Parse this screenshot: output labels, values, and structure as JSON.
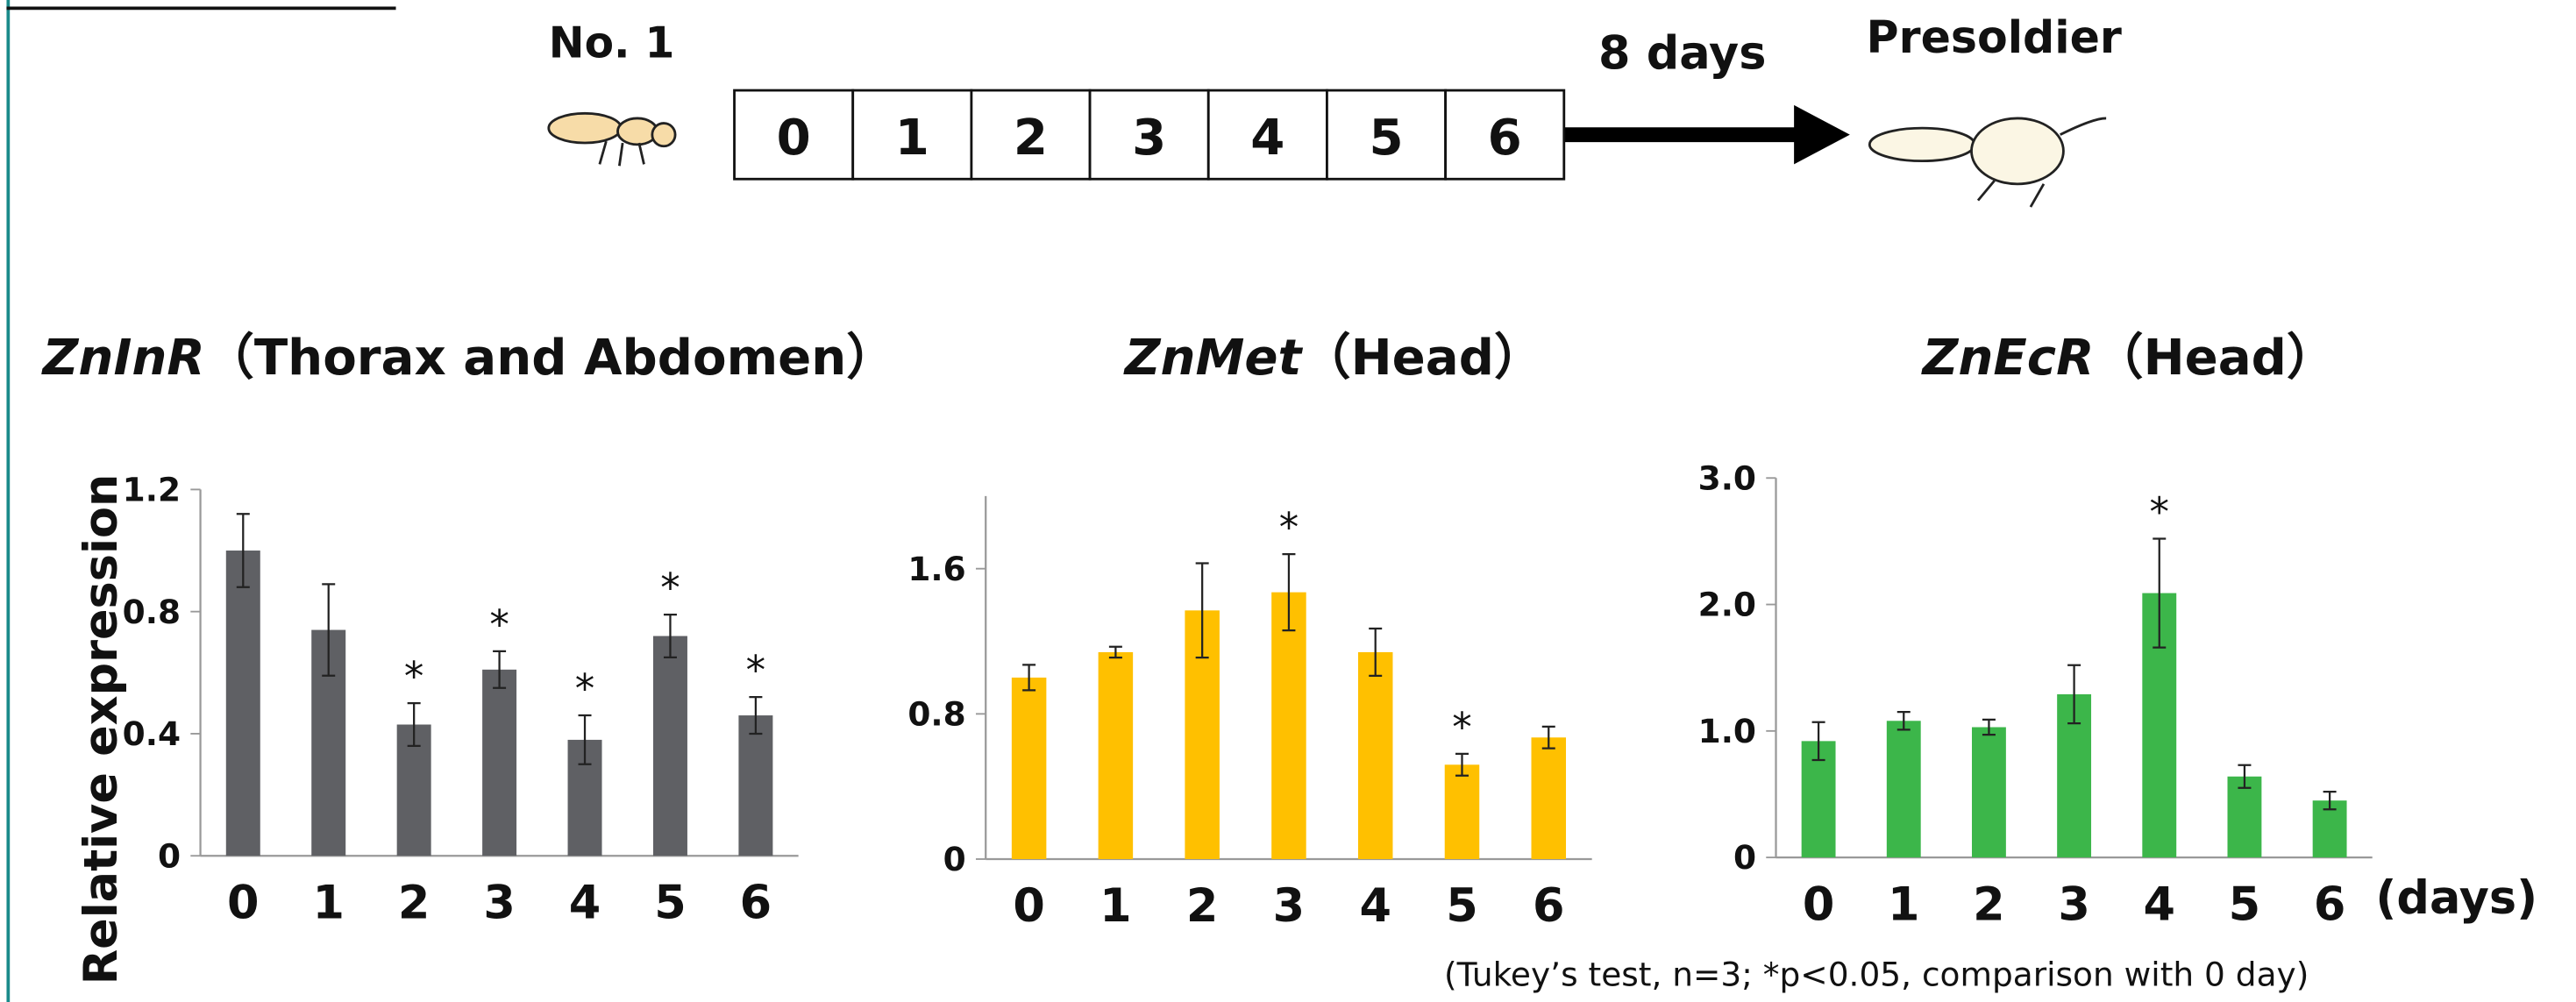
{
  "diagram": {
    "start_label": "No. 1",
    "boxes": [
      "0",
      "1",
      "2",
      "3",
      "4",
      "5",
      "6"
    ],
    "arrow_label": "8 days",
    "end_label": "Presoldier"
  },
  "note": "(Tukey’s test, n=3; *p<0.05, comparison with 0 day)",
  "chart_data": [
    {
      "type": "bar",
      "title": "ZnInR",
      "title_tissue": "（Thorax and Abdomen）",
      "ylabel": "Relative expression",
      "categories": [
        "0",
        "1",
        "2",
        "3",
        "4",
        "5",
        "6"
      ],
      "values": [
        1.0,
        0.74,
        0.43,
        0.61,
        0.38,
        0.72,
        0.46
      ],
      "errors": [
        0.12,
        0.15,
        0.07,
        0.06,
        0.08,
        0.07,
        0.06
      ],
      "markers": [
        null,
        null,
        "*",
        "*",
        "*",
        "*",
        "*"
      ],
      "color": "#5f6064",
      "ylim": [
        0,
        1.2
      ],
      "yticks": [
        0,
        0.4,
        0.8,
        1.2
      ]
    },
    {
      "type": "bar",
      "title": "ZnMet",
      "title_tissue": "（Head）",
      "categories": [
        "0",
        "1",
        "2",
        "3",
        "4",
        "5",
        "6"
      ],
      "values": [
        1.0,
        1.14,
        1.37,
        1.47,
        1.14,
        0.52,
        0.67
      ],
      "errors": [
        0.07,
        0.03,
        0.26,
        0.21,
        0.13,
        0.06,
        0.06
      ],
      "markers": [
        null,
        null,
        null,
        "*",
        null,
        "*",
        null
      ],
      "color": "#ffc000",
      "ylim": [
        0,
        2.0
      ],
      "yticks": [
        0,
        0.8,
        1.6
      ]
    },
    {
      "type": "bar",
      "title": "ZnEcR",
      "title_tissue": "（Head）",
      "xlabel": "(days)",
      "categories": [
        "0",
        "1",
        "2",
        "3",
        "4",
        "5",
        "6"
      ],
      "values": [
        0.92,
        1.08,
        1.03,
        1.29,
        2.09,
        0.64,
        0.45
      ],
      "errors": [
        0.15,
        0.07,
        0.06,
        0.23,
        0.43,
        0.09,
        0.07
      ],
      "markers": [
        null,
        null,
        null,
        null,
        "*",
        null,
        null
      ],
      "color": "#3cb64a",
      "ylim": [
        0,
        3.0
      ],
      "yticks": [
        0,
        {
          "value": 1.0,
          "label": "1.0"
        },
        {
          "value": 2.0,
          "label": "2.0"
        },
        {
          "value": 3.0,
          "label": "3.0"
        }
      ]
    }
  ]
}
